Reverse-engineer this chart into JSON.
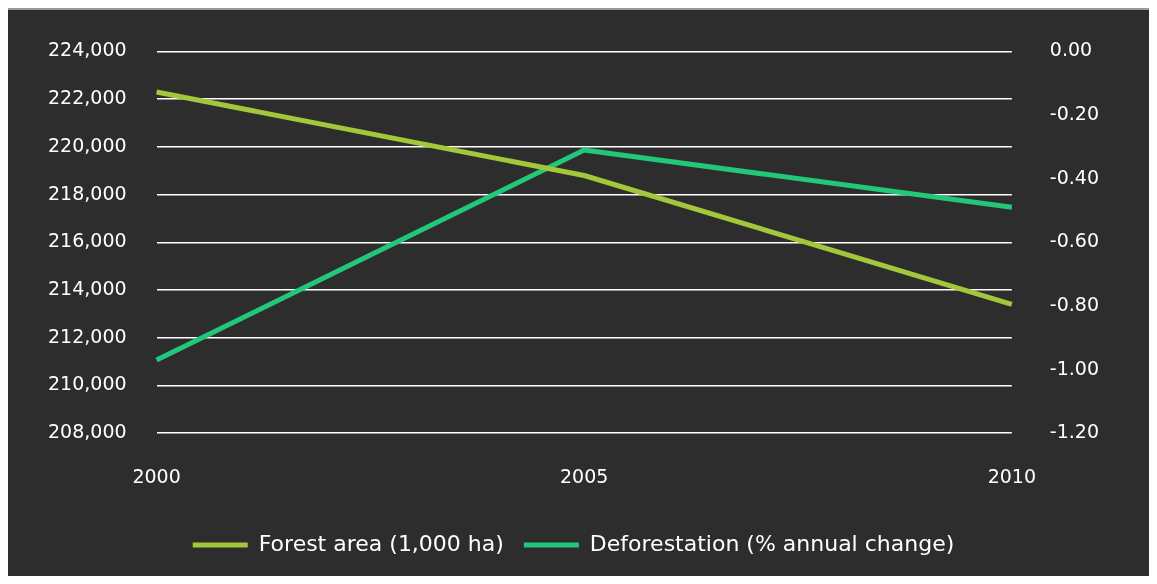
{
  "chart_data": {
    "type": "line",
    "categories": [
      "2000",
      "2005",
      "2010"
    ],
    "series": [
      {
        "name": "Forest area (1,000 ha)",
        "color": "#a2c73a",
        "values": [
          222300,
          218800,
          213400
        ]
      },
      {
        "name": "Deforestation (% annual change)",
        "color": "#22c77a",
        "values": [
          -0.97,
          -0.31,
          -0.49
        ],
        "axis": "y2"
      }
    ],
    "ylim": [
      208000,
      224000
    ],
    "yticks": [
      {
        "value": 208000,
        "label": "208,000"
      },
      {
        "value": 210000,
        "label": "210,000"
      },
      {
        "value": 212000,
        "label": "212,000"
      },
      {
        "value": 214000,
        "label": "214,000"
      },
      {
        "value": 216000,
        "label": "216,000"
      },
      {
        "value": 218000,
        "label": "218,000"
      },
      {
        "value": 220000,
        "label": "220,000"
      },
      {
        "value": 222000,
        "label": "222,000"
      },
      {
        "value": 224000,
        "label": "224,000"
      }
    ],
    "y2lim": [
      -1.2,
      0
    ],
    "y2ticks": [
      {
        "value": -1.2,
        "label": "-1.20"
      },
      {
        "value": -1,
        "label": "-1.00"
      },
      {
        "value": -0.8,
        "label": "-0.80"
      },
      {
        "value": -0.6,
        "label": "-0.60"
      },
      {
        "value": -0.4,
        "label": "-0.40"
      },
      {
        "value": -0.2,
        "label": "-0.20"
      },
      {
        "value": 0,
        "label": "0.00"
      }
    ],
    "grid": "y",
    "legend": "bottom",
    "marker": "none",
    "line_style": "solid"
  }
}
